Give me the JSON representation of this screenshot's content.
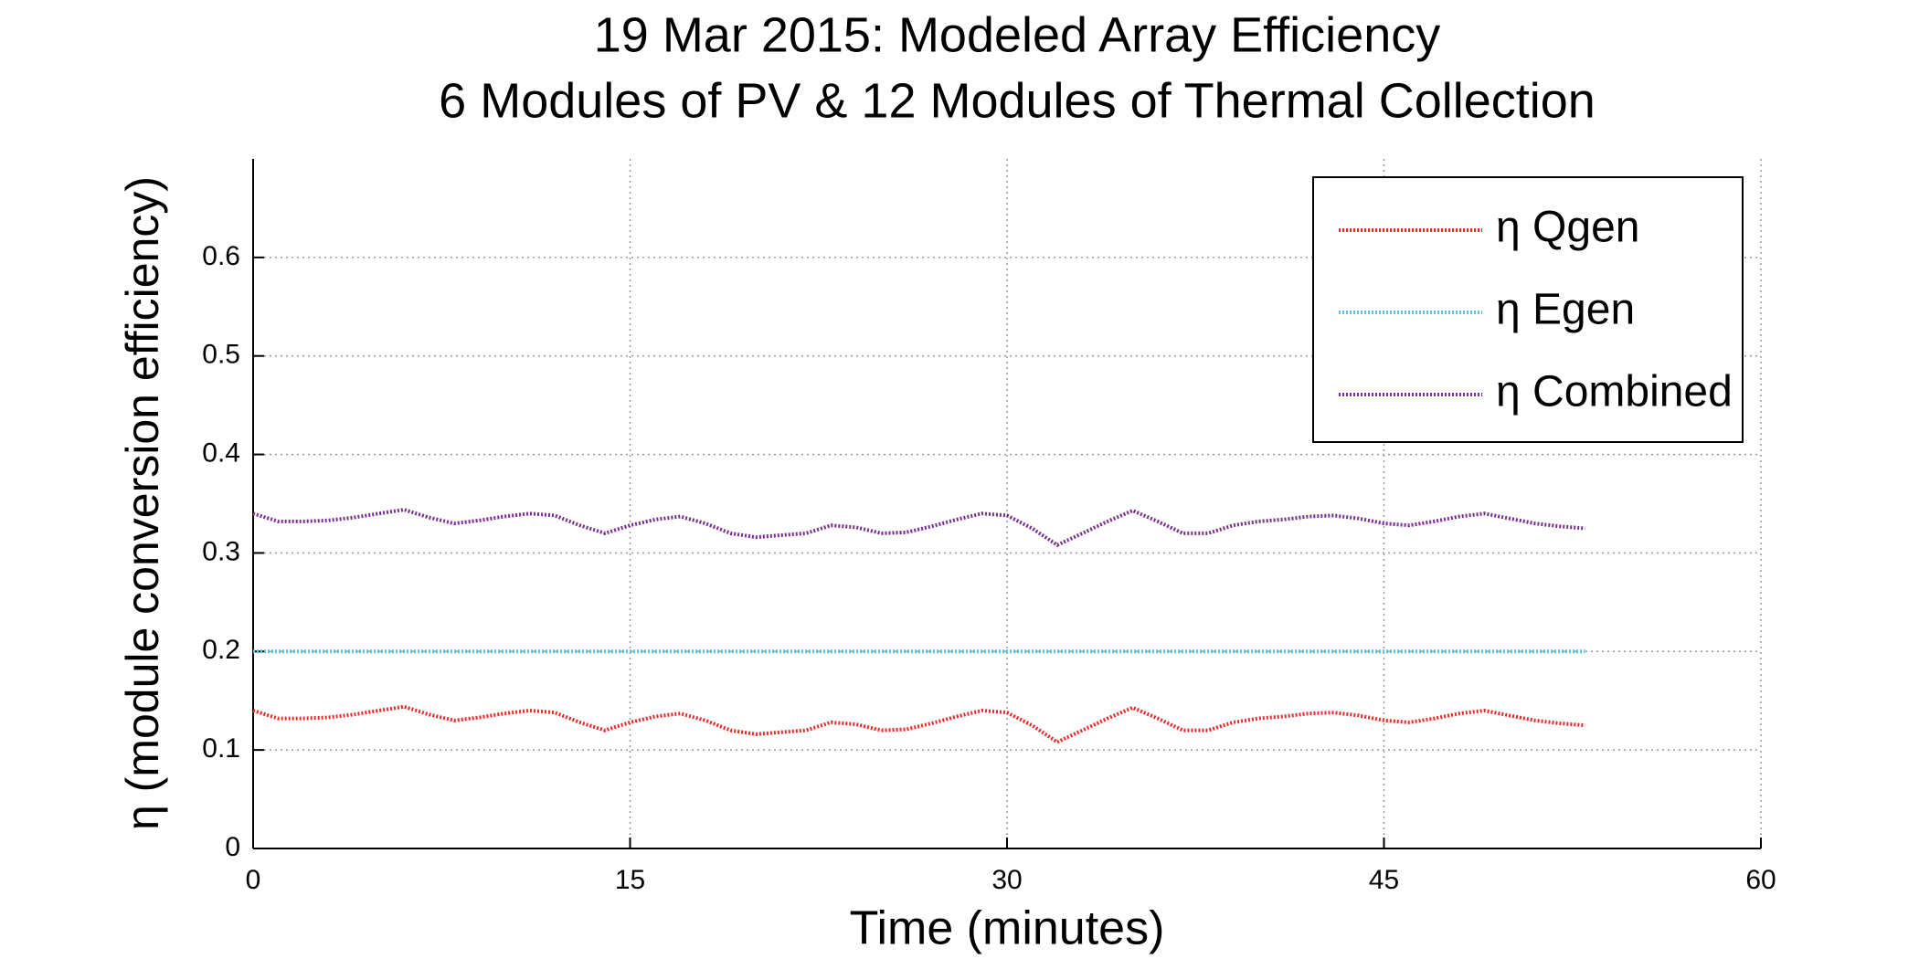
{
  "chart_data": {
    "type": "line",
    "title": "19 Mar 2015: Modeled Array Efficiency",
    "subtitle": "6 Modules of PV & 12 Modules of Thermal Collection",
    "x_label": "Time (minutes)",
    "y_label": "η (module conversion efficiency)",
    "x": [
      0,
      1,
      2,
      3,
      4,
      5,
      6,
      7,
      8,
      9,
      10,
      11,
      12,
      13,
      14,
      15,
      16,
      17,
      18,
      19,
      20,
      21,
      22,
      23,
      24,
      25,
      26,
      27,
      28,
      29,
      30,
      31,
      32,
      33,
      34,
      35,
      36,
      37,
      38,
      39,
      40,
      41,
      42,
      43,
      44,
      45,
      46,
      47,
      48,
      49,
      50,
      51,
      52,
      53
    ],
    "series": [
      {
        "name": "η Qgen",
        "color": "#e82a2a",
        "values": [
          0.14,
          0.132,
          0.132,
          0.133,
          0.136,
          0.14,
          0.144,
          0.136,
          0.13,
          0.133,
          0.137,
          0.14,
          0.138,
          0.128,
          0.12,
          0.128,
          0.134,
          0.137,
          0.13,
          0.12,
          0.116,
          0.118,
          0.12,
          0.128,
          0.126,
          0.12,
          0.121,
          0.127,
          0.134,
          0.14,
          0.138,
          0.125,
          0.108,
          0.12,
          0.132,
          0.143,
          0.132,
          0.12,
          0.12,
          0.128,
          0.132,
          0.134,
          0.137,
          0.138,
          0.135,
          0.13,
          0.128,
          0.132,
          0.137,
          0.14,
          0.135,
          0.13,
          0.127,
          0.125
        ]
      },
      {
        "name": "η Egen",
        "color": "#5cc4df",
        "values": [
          0.2,
          0.2,
          0.2,
          0.2,
          0.2,
          0.2,
          0.2,
          0.2,
          0.2,
          0.2,
          0.2,
          0.2,
          0.2,
          0.2,
          0.2,
          0.2,
          0.2,
          0.2,
          0.2,
          0.2,
          0.2,
          0.2,
          0.2,
          0.2,
          0.2,
          0.2,
          0.2,
          0.2,
          0.2,
          0.2,
          0.2,
          0.2,
          0.2,
          0.2,
          0.2,
          0.2,
          0.2,
          0.2,
          0.2,
          0.2,
          0.2,
          0.2,
          0.2,
          0.2,
          0.2,
          0.2,
          0.2,
          0.2,
          0.2,
          0.2,
          0.2,
          0.2,
          0.2,
          0.2
        ]
      },
      {
        "name": "η Combined",
        "color": "#7a2d8e",
        "values": [
          0.34,
          0.332,
          0.332,
          0.333,
          0.336,
          0.34,
          0.344,
          0.336,
          0.33,
          0.333,
          0.337,
          0.34,
          0.338,
          0.328,
          0.32,
          0.328,
          0.334,
          0.337,
          0.33,
          0.32,
          0.316,
          0.318,
          0.32,
          0.328,
          0.326,
          0.32,
          0.321,
          0.327,
          0.334,
          0.34,
          0.338,
          0.325,
          0.308,
          0.32,
          0.332,
          0.343,
          0.332,
          0.32,
          0.32,
          0.328,
          0.332,
          0.334,
          0.337,
          0.338,
          0.335,
          0.33,
          0.328,
          0.332,
          0.337,
          0.34,
          0.335,
          0.33,
          0.327,
          0.325
        ]
      }
    ],
    "xlim": [
      0,
      60
    ],
    "xticks": [
      0,
      15,
      30,
      45,
      60
    ],
    "ylim": [
      0,
      0.7
    ],
    "yticks": [
      0,
      0.1,
      0.2,
      0.3,
      0.4,
      0.5,
      0.6
    ],
    "grid": true,
    "legend": "northeast"
  }
}
